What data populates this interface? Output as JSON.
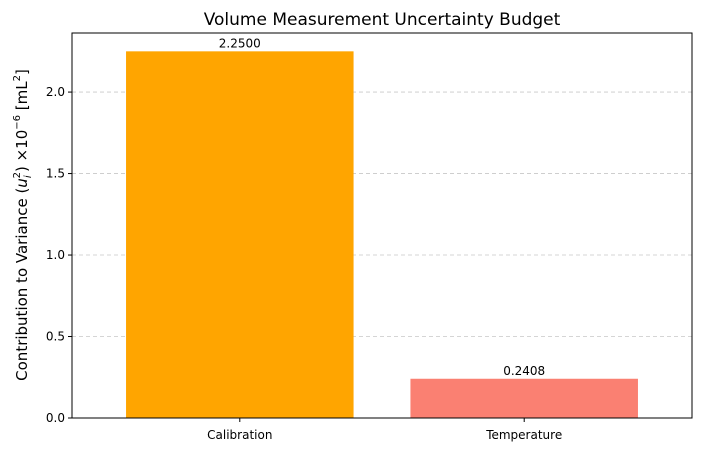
{
  "chart_data": {
    "type": "bar",
    "title": "Volume Measurement Uncertainty Budget",
    "xlabel": "",
    "ylabel": {
      "prefix": "Contribution to Variance (",
      "var": "u",
      "sub": "i",
      "sup": "2",
      "middle": ") ×10",
      "exp": "−6",
      "unit_open": " [mL",
      "unit_sup": "2",
      "unit_close": "]"
    },
    "categories": [
      "Calibration",
      "Temperature"
    ],
    "values": [
      2.25,
      0.2408
    ],
    "data_labels": [
      "2.2500",
      "0.2408"
    ],
    "colors": [
      "#FFA500",
      "#FA8072"
    ],
    "ylim": [
      0,
      2.3625
    ],
    "yticks": [
      0.0,
      0.5,
      1.0,
      1.5,
      2.0
    ],
    "ytick_labels": [
      "0.0",
      "0.5",
      "1.0",
      "1.5",
      "2.0"
    ],
    "grid": {
      "axis": "y",
      "style": "dashed",
      "on": true
    },
    "legend": "none"
  }
}
